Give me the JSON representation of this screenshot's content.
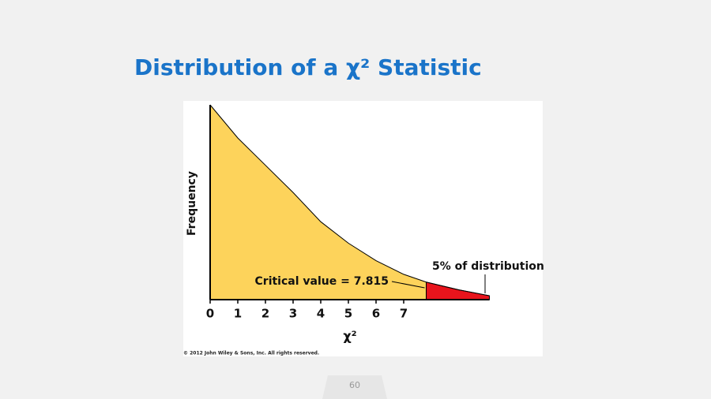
{
  "chart_data": {
    "type": "area",
    "title": "Distribution of a χ² Statistic",
    "x_label": "χ²",
    "y_label": "Frequency",
    "x": [
      0,
      1,
      2,
      3,
      4,
      5,
      6,
      7,
      7.815,
      9,
      10.1
    ],
    "values": [
      1.0,
      0.83,
      0.69,
      0.55,
      0.4,
      0.29,
      0.2,
      0.13,
      0.09,
      0.05,
      0.02
    ],
    "xlim": [
      0,
      10.5
    ],
    "ylim": [
      0,
      1
    ],
    "xticks": [
      0,
      1,
      2,
      3,
      4,
      5,
      6,
      7
    ],
    "critical_value": 7.815,
    "body_color": "#fdd35b",
    "tail_color": "#e8141c",
    "annotations": [
      "Critical value = 7.815",
      "5% of distribution"
    ],
    "copyright": "© 2012 John Wiley & Sons, Inc. All rights reserved."
  },
  "page_number": "60"
}
